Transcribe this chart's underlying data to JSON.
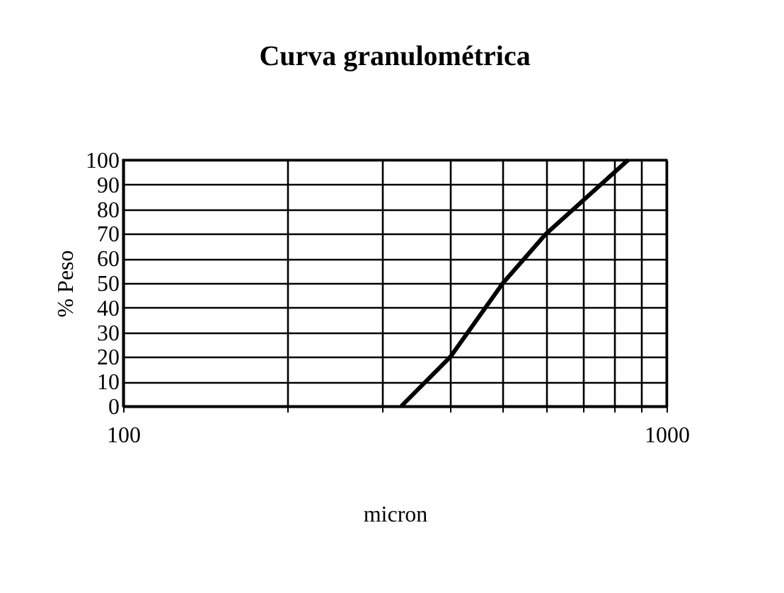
{
  "chart_data": {
    "type": "line",
    "title": "Curva  granulométrica",
    "xlabel": "micron",
    "ylabel": "% Peso",
    "log": "x",
    "x": [
      325,
      400,
      500,
      600,
      850
    ],
    "series": [
      {
        "color": "#000000",
        "values": [
          0,
          20,
          50,
          70,
          100
        ]
      }
    ],
    "xlim": [
      100,
      1000
    ],
    "xticks": [
      100,
      {
        "value": 200,
        "label": null
      },
      {
        "value": 300,
        "label": null
      },
      {
        "value": 400,
        "label": null
      },
      {
        "value": 500,
        "label": null
      },
      {
        "value": 600,
        "label": null
      },
      {
        "value": 700,
        "label": null
      },
      {
        "value": 800,
        "label": null
      },
      {
        "value": 900,
        "label": null
      },
      1000
    ],
    "ylim": [
      0,
      100
    ],
    "yticks": [
      0,
      10,
      20,
      30,
      40,
      50,
      60,
      70,
      80,
      90,
      100
    ],
    "grid": true,
    "marker": "none",
    "line_style": "solid"
  }
}
